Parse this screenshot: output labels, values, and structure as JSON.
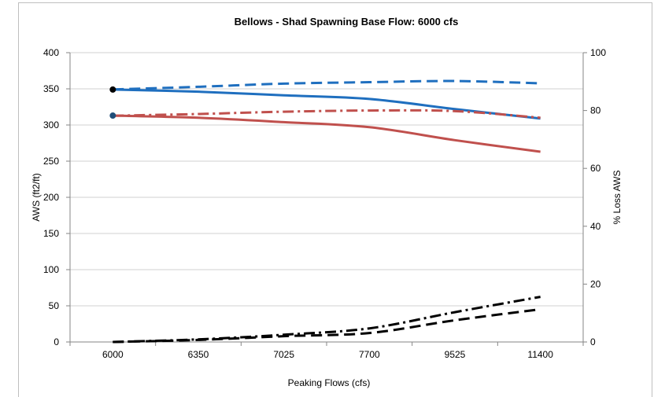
{
  "chart_data": {
    "type": "line",
    "title": "Bellows -  Shad Spawning   Base Flow: 6000 cfs",
    "xlabel": "Peaking Flows (cfs)",
    "ylabel": "AWS (ft2/ft)",
    "y2label": "% Loss AWS",
    "categories": [
      "6000",
      "6350",
      "7025",
      "7700",
      "9525",
      "11400"
    ],
    "ylim": [
      0,
      400
    ],
    "yticks": [
      "0",
      "50",
      "100",
      "150",
      "200",
      "250",
      "300",
      "350",
      "400"
    ],
    "y2lim": [
      0,
      100
    ],
    "y2ticks": [
      "0",
      "20",
      "40",
      "60",
      "80",
      "100"
    ],
    "grid": true,
    "legend": "none",
    "series": [
      {
        "color": "#1f6fbf",
        "dash": "solid",
        "axis": "left",
        "values": [
          349,
          346,
          341,
          336,
          322,
          309
        ]
      },
      {
        "color": "#c0504d",
        "dash": "solid",
        "axis": "left",
        "values": [
          313,
          310,
          304,
          297,
          279,
          263
        ]
      },
      {
        "color": "#1f6fbf",
        "dash": "dash",
        "axis": "right",
        "values": [
          87.3,
          88.2,
          89.3,
          89.8,
          90.2,
          89.4
        ]
      },
      {
        "color": "#c0504d",
        "dash": "dashdot",
        "axis": "right",
        "values": [
          78.2,
          78.8,
          79.6,
          80.0,
          79.8,
          77.5
        ]
      },
      {
        "color": "#000000",
        "dash": "dashdot",
        "axis": "right",
        "values": [
          0.0,
          0.9,
          2.5,
          4.7,
          10.3,
          15.6
        ]
      },
      {
        "color": "#000000",
        "dash": "dash",
        "axis": "right",
        "values": [
          0.0,
          0.7,
          2.0,
          3.1,
          7.5,
          11.3
        ]
      }
    ],
    "markers": [
      {
        "color": "#000000",
        "axis": "left",
        "category": "6000",
        "value": 349
      },
      {
        "color": "#1f4e79",
        "axis": "left",
        "category": "6000",
        "value": 313
      }
    ]
  }
}
